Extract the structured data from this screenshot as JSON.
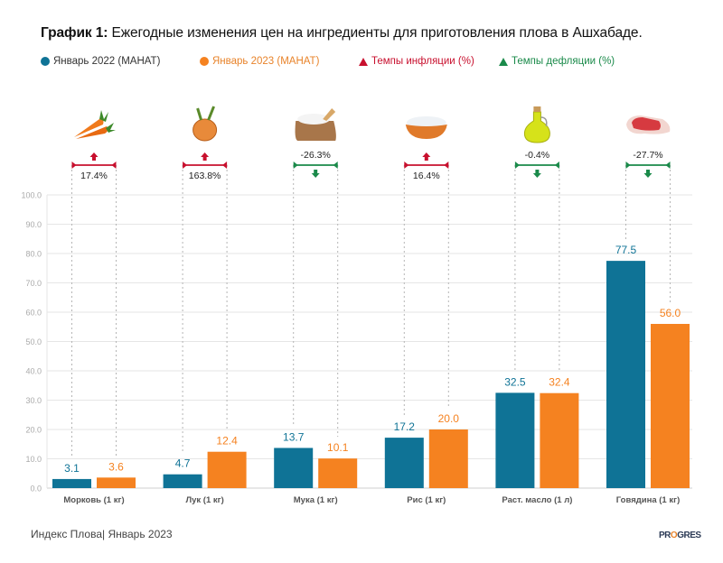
{
  "title": {
    "bold": "График 1:",
    "text": " Ежегодные изменения цен на ингредиенты для приготовления плова в Ашхабаде."
  },
  "legend": [
    {
      "label": "Январь 2022 (МАНАТ)",
      "marker": "circle",
      "color": "#0f7396",
      "text_color": "#333333"
    },
    {
      "label": "Январь 2023 (МАНАТ)",
      "marker": "circle",
      "color": "#f58220",
      "text_color": "#e8832a"
    },
    {
      "label": "Темпы инфляции (%)",
      "marker": "triangle",
      "color": "#c8102e",
      "text_color": "#c8102e"
    },
    {
      "label": "Темпы дефляции (%)",
      "marker": "triangle",
      "color": "#1a8a4a",
      "text_color": "#1a8a4a"
    }
  ],
  "colors": {
    "series_2022": "#0f7396",
    "series_2023": "#f58220",
    "inflation": "#c8102e",
    "deflation": "#1a8a4a"
  },
  "chart_data": {
    "type": "bar",
    "title": "График 1: Ежегодные изменения цен на ингредиенты для приготовления плова в Ашхабаде.",
    "xlabel": "",
    "ylabel": "",
    "ylim": [
      0,
      100
    ],
    "yticks": [
      "0.0",
      "10.0",
      "20.0",
      "30.0",
      "40.0",
      "50.0",
      "60.0",
      "70.0",
      "80.0",
      "90.0",
      "100.0"
    ],
    "grid": true,
    "legend_position": "top",
    "categories": [
      "Морковь (1 кг)",
      "Лук (1 кг)",
      "Мука (1 кг)",
      "Рис (1 кг)",
      "Раст. масло (1 л)",
      "Говядина (1 кг)"
    ],
    "category_icons": [
      "carrot-icon",
      "onion-icon",
      "flour-sack-icon",
      "rice-bowl-icon",
      "oil-bottle-icon",
      "beef-steak-icon"
    ],
    "series": [
      {
        "name": "Январь 2022 (МАНАТ)",
        "values": [
          3.1,
          4.7,
          13.7,
          17.2,
          32.5,
          77.5
        ],
        "labels": [
          "3.1",
          "4.7",
          "13.7",
          "17.2",
          "32.5",
          "77.5"
        ]
      },
      {
        "name": "Январь 2023 (МАНАТ)",
        "values": [
          3.6,
          12.4,
          10.1,
          20.0,
          32.4,
          56.0
        ],
        "labels": [
          "3.6",
          "12.4",
          "10.1",
          "20.0",
          "32.4",
          "56.0"
        ]
      }
    ],
    "change_pct": [
      17.4,
      163.8,
      -26.3,
      16.4,
      -0.4,
      -27.7
    ],
    "change_labels": [
      "17.4%",
      "163.8%",
      "-26.3%",
      "16.4%",
      "-0.4%",
      "-27.7%"
    ],
    "change_direction": [
      "inflation",
      "inflation",
      "deflation",
      "inflation",
      "deflation",
      "deflation"
    ]
  },
  "footer": {
    "source": "Индекс Плова| Январь 2023",
    "brand_pre": "PR",
    "brand_o": "O",
    "brand_post": "GRES"
  }
}
